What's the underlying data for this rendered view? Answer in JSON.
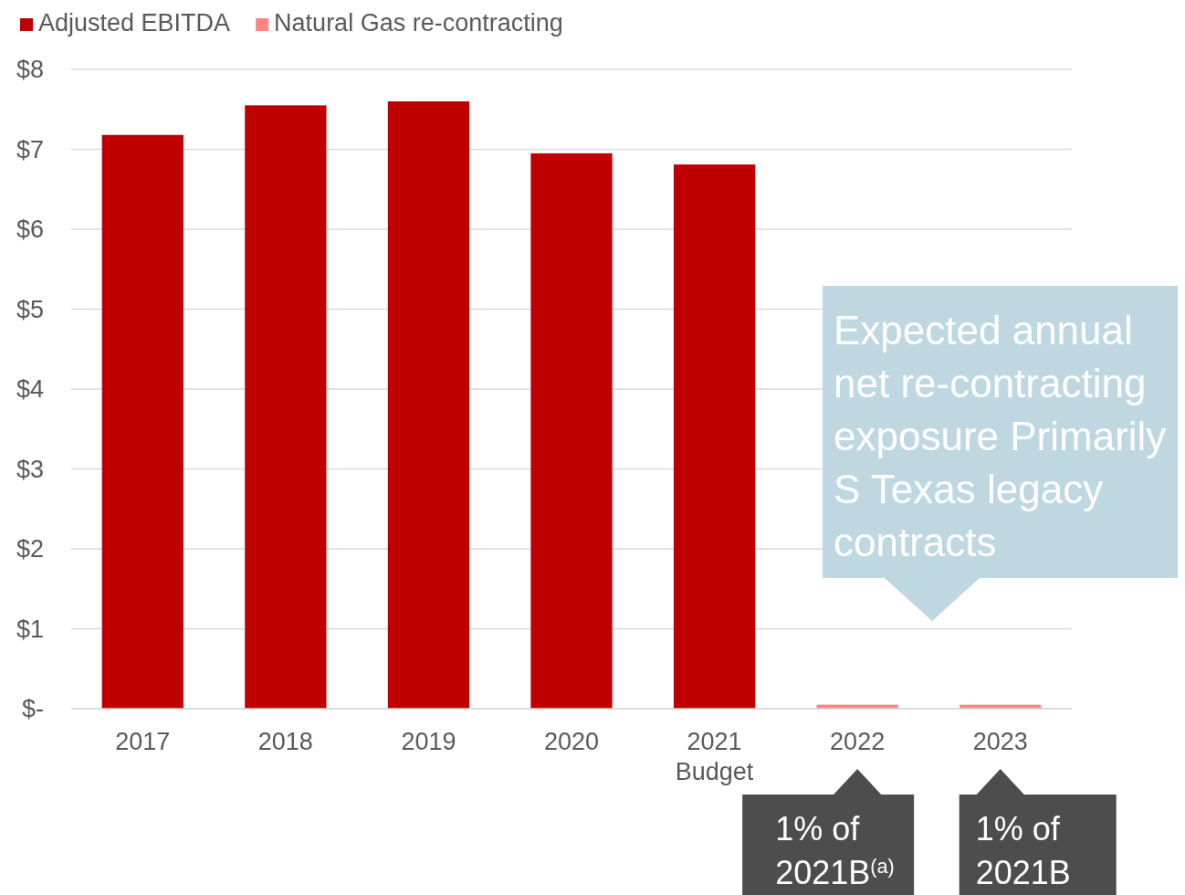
{
  "chart_data": {
    "type": "bar",
    "categories": [
      "2017",
      "2018",
      "2019",
      "2020",
      "2021 Budget",
      "2022",
      "2023"
    ],
    "series": [
      {
        "name": "Adjusted EBITDA",
        "color": "#c00000",
        "values": [
          7.18,
          7.55,
          7.6,
          6.95,
          6.81,
          null,
          null
        ]
      },
      {
        "name": "Natural Gas re-contracting",
        "color": "#ff8585",
        "values": [
          null,
          null,
          null,
          null,
          null,
          0.05,
          0.05
        ]
      }
    ],
    "ylim": [
      0,
      8
    ],
    "yticks": [
      {
        "value": 0,
        "label": "$-"
      },
      {
        "value": 1,
        "label": "$1"
      },
      {
        "value": 2,
        "label": "$2"
      },
      {
        "value": 3,
        "label": "$3"
      },
      {
        "value": 4,
        "label": "$4"
      },
      {
        "value": 5,
        "label": "$5"
      },
      {
        "value": 6,
        "label": "$6"
      },
      {
        "value": 7,
        "label": "$7"
      },
      {
        "value": 8,
        "label": "$8"
      }
    ],
    "grid": "y",
    "legend": "top left",
    "annotations": [
      "Expected annual net re-contracting exposure Primarily S Texas legacy contracts",
      "1% of 2021B$^{(a)}$",
      "1% of 2021B"
    ]
  }
}
